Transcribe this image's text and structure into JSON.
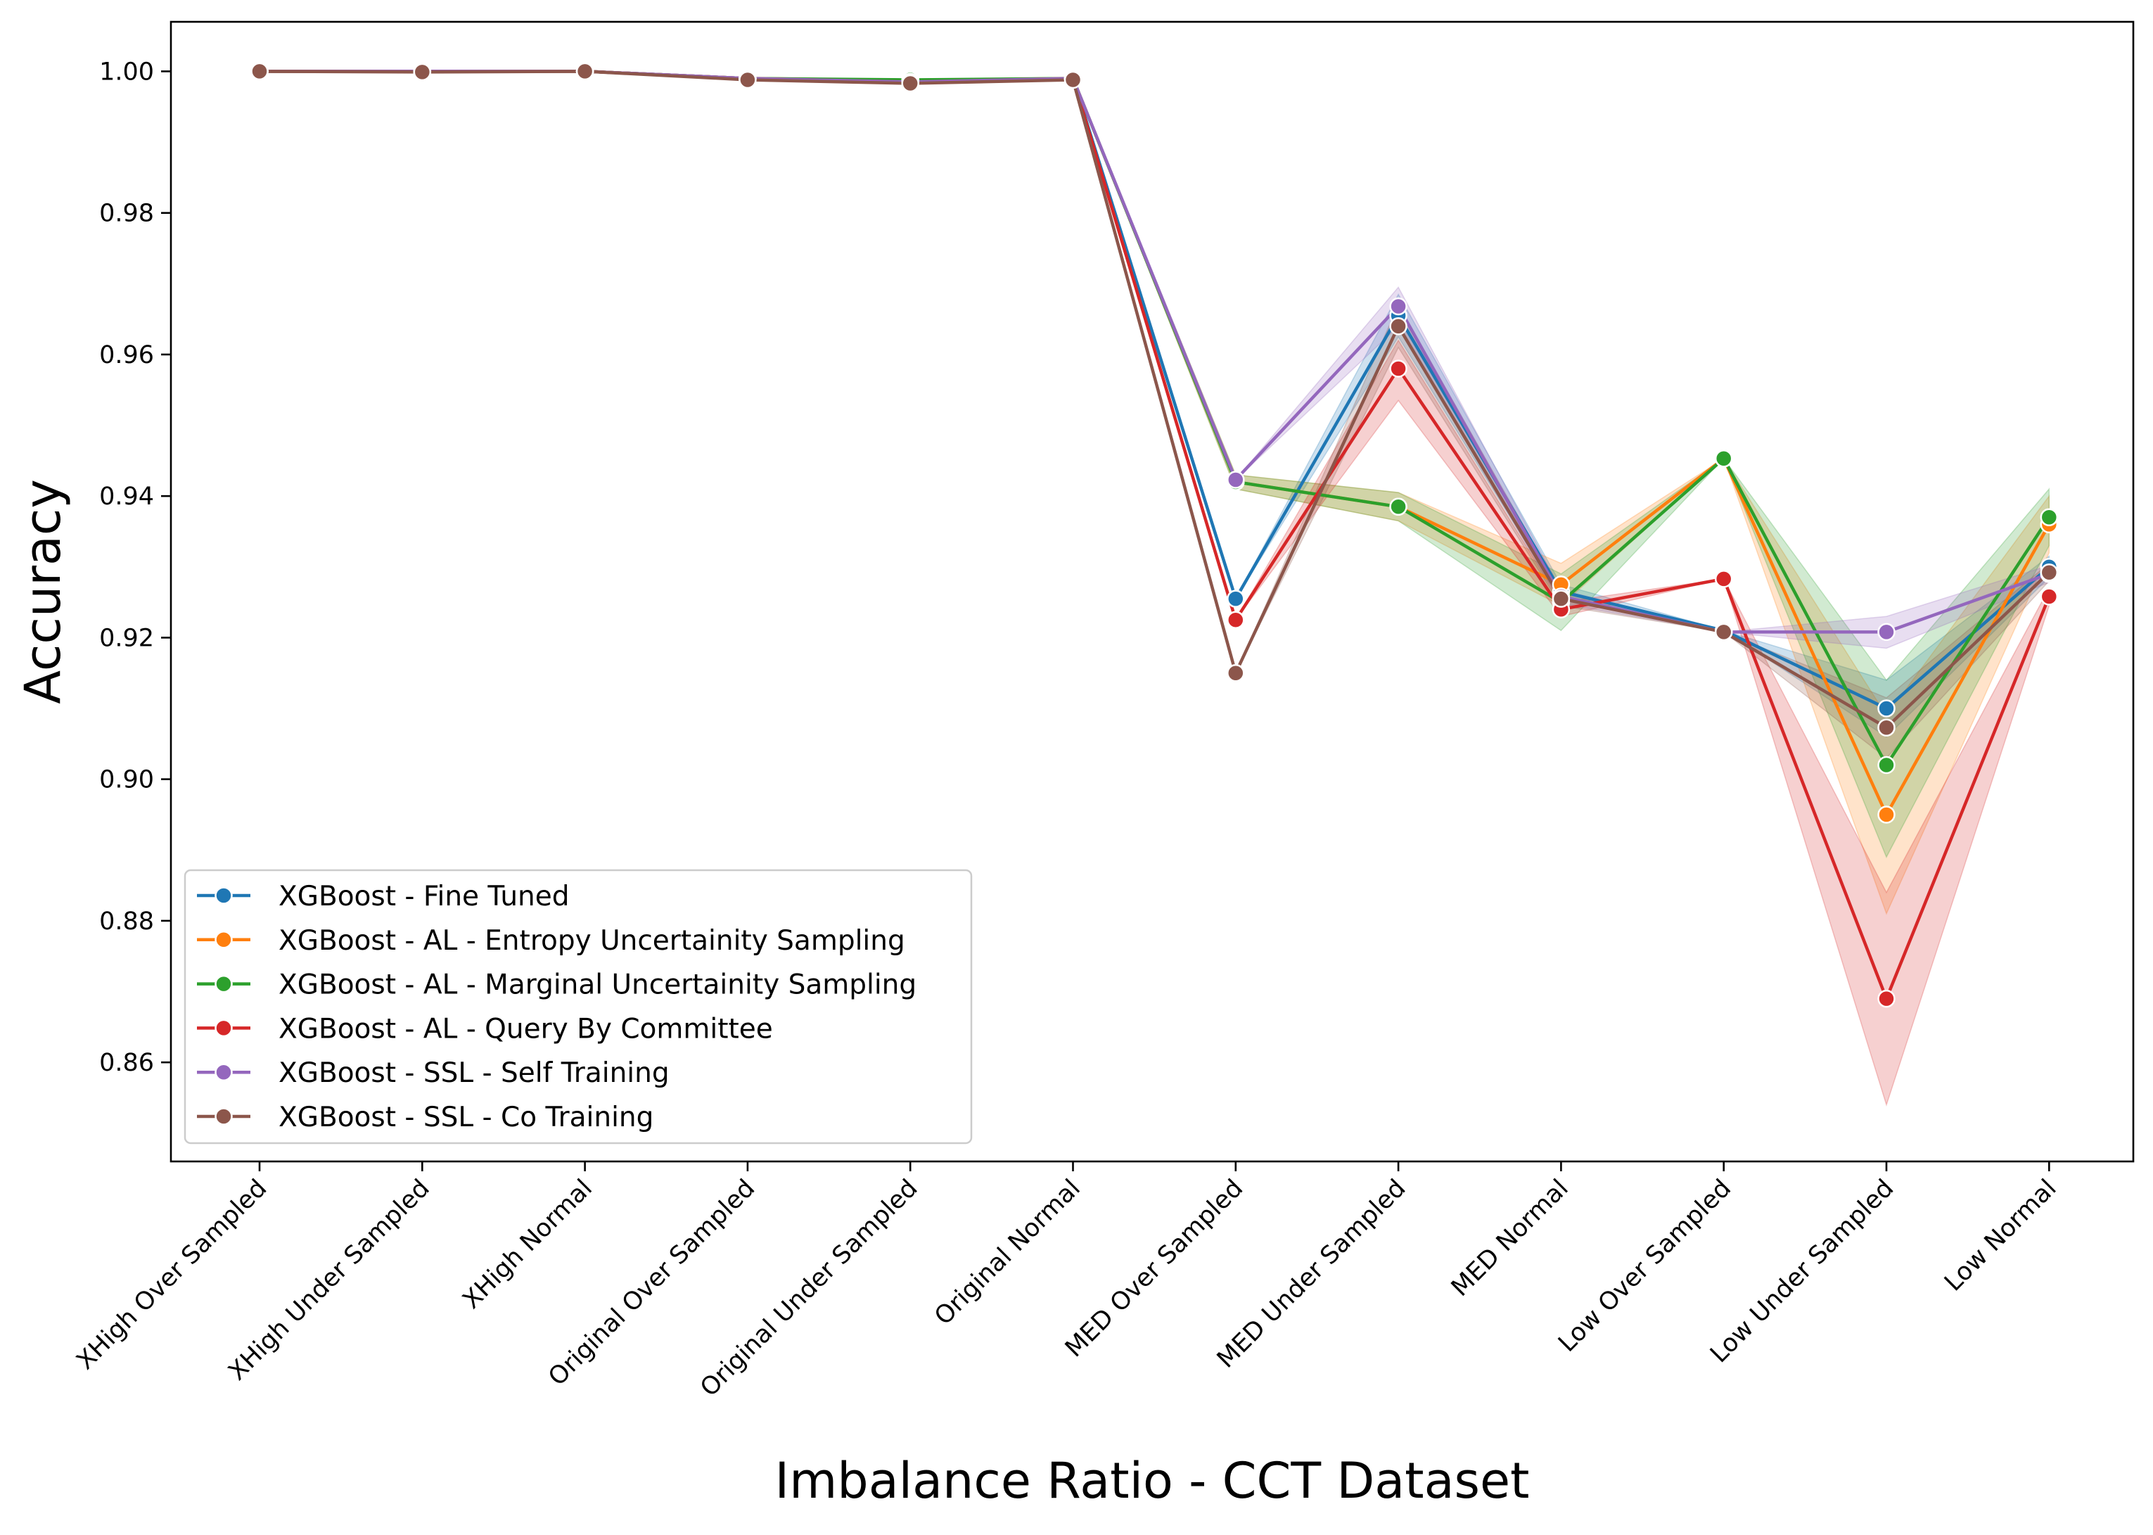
{
  "chart_data": {
    "type": "line",
    "xlabel": "Imbalance Ratio - CCT Dataset",
    "ylabel": "Accuracy",
    "ylim": [
      0.846,
      1.007
    ],
    "yticks": [
      "0.86",
      "0.88",
      "0.90",
      "0.92",
      "0.94",
      "0.96",
      "0.98",
      "1.00"
    ],
    "ytick_values": [
      0.86,
      0.88,
      0.9,
      0.92,
      0.94,
      0.96,
      0.98,
      1.0
    ],
    "categories": [
      "XHigh Over Sampled",
      "XHigh Under Sampled",
      "XHigh Normal",
      "Original Over Sampled",
      "Original Under Sampled",
      "Original Normal",
      "MED Over Sampled",
      "MED Under Sampled",
      "MED Normal",
      "Low Over Sampled",
      "Low Under Sampled",
      "Low Normal"
    ],
    "grid": false,
    "legend_position": "lower-left",
    "series": [
      {
        "name": "XGBoost - Fine Tuned",
        "color": "#1f77b4",
        "values": [
          1.0,
          1.0,
          1.0,
          0.999,
          0.9985,
          0.999,
          0.9255,
          0.9655,
          0.9265,
          0.921,
          0.91,
          0.93
        ],
        "lower": [
          1.0,
          1.0,
          1.0,
          0.999,
          0.9985,
          0.999,
          0.9255,
          0.9625,
          0.9255,
          0.921,
          0.906,
          0.9285
        ],
        "upper": [
          1.0,
          1.0,
          1.0,
          0.999,
          0.9985,
          0.999,
          0.9255,
          0.9685,
          0.9275,
          0.921,
          0.914,
          0.9315
        ]
      },
      {
        "name": "XGBoost - AL - Entropy Uncertainity Sampling",
        "color": "#ff7f0e",
        "values": [
          1.0,
          1.0,
          1.0,
          0.999,
          0.9987,
          0.999,
          0.942,
          0.9385,
          0.9275,
          0.9453,
          0.895,
          0.936
        ],
        "lower": [
          1.0,
          1.0,
          1.0,
          0.999,
          0.9987,
          0.999,
          0.941,
          0.9365,
          0.9245,
          0.9453,
          0.881,
          0.932
        ],
        "upper": [
          1.0,
          1.0,
          1.0,
          0.999,
          0.9987,
          0.999,
          0.943,
          0.9405,
          0.9305,
          0.9453,
          0.909,
          0.94
        ]
      },
      {
        "name": "XGBoost - AL - Marginal Uncertainity Sampling",
        "color": "#2ca02c",
        "values": [
          1.0,
          1.0,
          1.0,
          0.999,
          0.9988,
          0.999,
          0.942,
          0.9385,
          0.925,
          0.9453,
          0.902,
          0.937
        ],
        "lower": [
          1.0,
          1.0,
          1.0,
          0.999,
          0.9988,
          0.999,
          0.941,
          0.9365,
          0.921,
          0.9453,
          0.889,
          0.933
        ],
        "upper": [
          1.0,
          1.0,
          1.0,
          0.999,
          0.9988,
          0.999,
          0.943,
          0.9405,
          0.929,
          0.9453,
          0.914,
          0.941
        ]
      },
      {
        "name": "XGBoost - AL - Query By Committee",
        "color": "#d62728",
        "values": [
          1.0,
          1.0,
          1.0,
          0.999,
          0.9985,
          0.999,
          0.9225,
          0.958,
          0.924,
          0.9283,
          0.869,
          0.9258
        ],
        "lower": [
          1.0,
          1.0,
          1.0,
          0.999,
          0.9985,
          0.999,
          0.9225,
          0.9535,
          0.923,
          0.9283,
          0.854,
          0.9245
        ],
        "upper": [
          1.0,
          1.0,
          1.0,
          0.999,
          0.9985,
          0.999,
          0.9225,
          0.962,
          0.925,
          0.9283,
          0.884,
          0.927
        ]
      },
      {
        "name": "XGBoost - SSL - Self Training",
        "color": "#9467bd",
        "values": [
          1.0,
          1.0,
          1.0,
          0.999,
          0.9985,
          0.999,
          0.9423,
          0.9668,
          0.9258,
          0.9208,
          0.9208,
          0.929
        ],
        "lower": [
          1.0,
          1.0,
          1.0,
          0.999,
          0.9985,
          0.999,
          0.9423,
          0.964,
          0.9248,
          0.9208,
          0.9185,
          0.9278
        ],
        "upper": [
          1.0,
          1.0,
          1.0,
          0.999,
          0.9985,
          0.999,
          0.9423,
          0.9695,
          0.9268,
          0.9208,
          0.923,
          0.9302
        ]
      },
      {
        "name": "XGBoost - SSL - Co Training",
        "color": "#8c564b",
        "values": [
          1.0,
          0.9999,
          1.0,
          0.9988,
          0.9983,
          0.9988,
          0.915,
          0.964,
          0.9255,
          0.9208,
          0.9073,
          0.9292
        ],
        "lower": [
          1.0,
          0.9999,
          1.0,
          0.9988,
          0.9983,
          0.9988,
          0.915,
          0.961,
          0.9245,
          0.9208,
          0.903,
          0.928
        ],
        "upper": [
          1.0,
          0.9999,
          1.0,
          0.9988,
          0.9983,
          0.9988,
          0.915,
          0.967,
          0.9265,
          0.9208,
          0.9115,
          0.9305
        ]
      }
    ]
  }
}
